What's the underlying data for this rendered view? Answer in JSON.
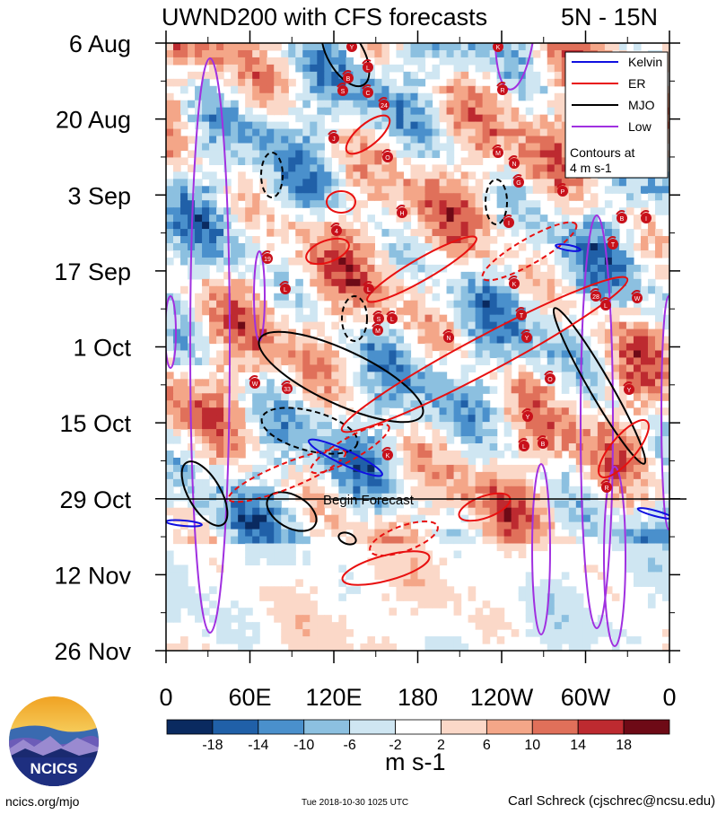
{
  "title": "UWND200 with CFS forecasts",
  "lat_range": "5N - 15N",
  "begin_forecast_label": "Begin Forecast",
  "units": "m s-1",
  "footer": {
    "site": "ncics.org/mjo",
    "timestamp": "Tue 2018-10-30 1025 UTC",
    "author": "Carl Schreck (cjschrec@ncsu.edu)"
  },
  "logo_text": "NCICS",
  "legend": {
    "entries": [
      {
        "label": "Kelvin",
        "color": "#1010e0"
      },
      {
        "label": "ER",
        "color": "#e81010"
      },
      {
        "label": "MJO",
        "color": "#000000"
      },
      {
        "label": "Low",
        "color": "#a030e0"
      }
    ],
    "note_line1": "Contours at",
    "note_line2": "4 m s-1"
  },
  "chart_data": {
    "type": "heatmap",
    "title": "UWND200 with CFS forecasts",
    "subtitle": "5N - 15N",
    "x_ticks": [
      "0",
      "60E",
      "120E",
      "180",
      "120W",
      "60W",
      "0"
    ],
    "y_ticks": [
      "6 Aug",
      "20 Aug",
      "3 Sep",
      "17 Sep",
      "1 Oct",
      "15 Oct",
      "29 Oct",
      "12 Nov",
      "26 Nov"
    ],
    "xlim": [
      0,
      360
    ],
    "ylim_dates": [
      "2018-08-06",
      "2018-11-26"
    ],
    "begin_forecast_date": "2018-10-29",
    "colorbar": {
      "levels": [
        -18,
        -14,
        -10,
        -6,
        -2,
        2,
        6,
        10,
        14,
        18
      ],
      "tick_labels": [
        "-18",
        "-14",
        "-10",
        "-6",
        "-2",
        "2",
        "6",
        "10",
        "14",
        "18"
      ],
      "colors": [
        "#0a2a60",
        "#2060a8",
        "#4a90cc",
        "#8cc0e0",
        "#cfe6f2",
        "#ffffff",
        "#fbd8c8",
        "#f4a688",
        "#e0705a",
        "#bd2a30",
        "#6e0a16"
      ]
    },
    "contour_interval": "4 m s-1",
    "storm_markers": [
      "Y",
      "K",
      "L",
      "B",
      "R",
      "S",
      "C",
      "24",
      "J",
      "M",
      "N",
      "O",
      "G",
      "P",
      "H",
      "I",
      "B",
      "I",
      "4",
      "T",
      "19",
      "L",
      "K",
      "L",
      "28",
      "L",
      "W",
      "S",
      "L",
      "T",
      "M",
      "N",
      "Y",
      "W",
      "33",
      "O",
      "Y"
    ]
  }
}
